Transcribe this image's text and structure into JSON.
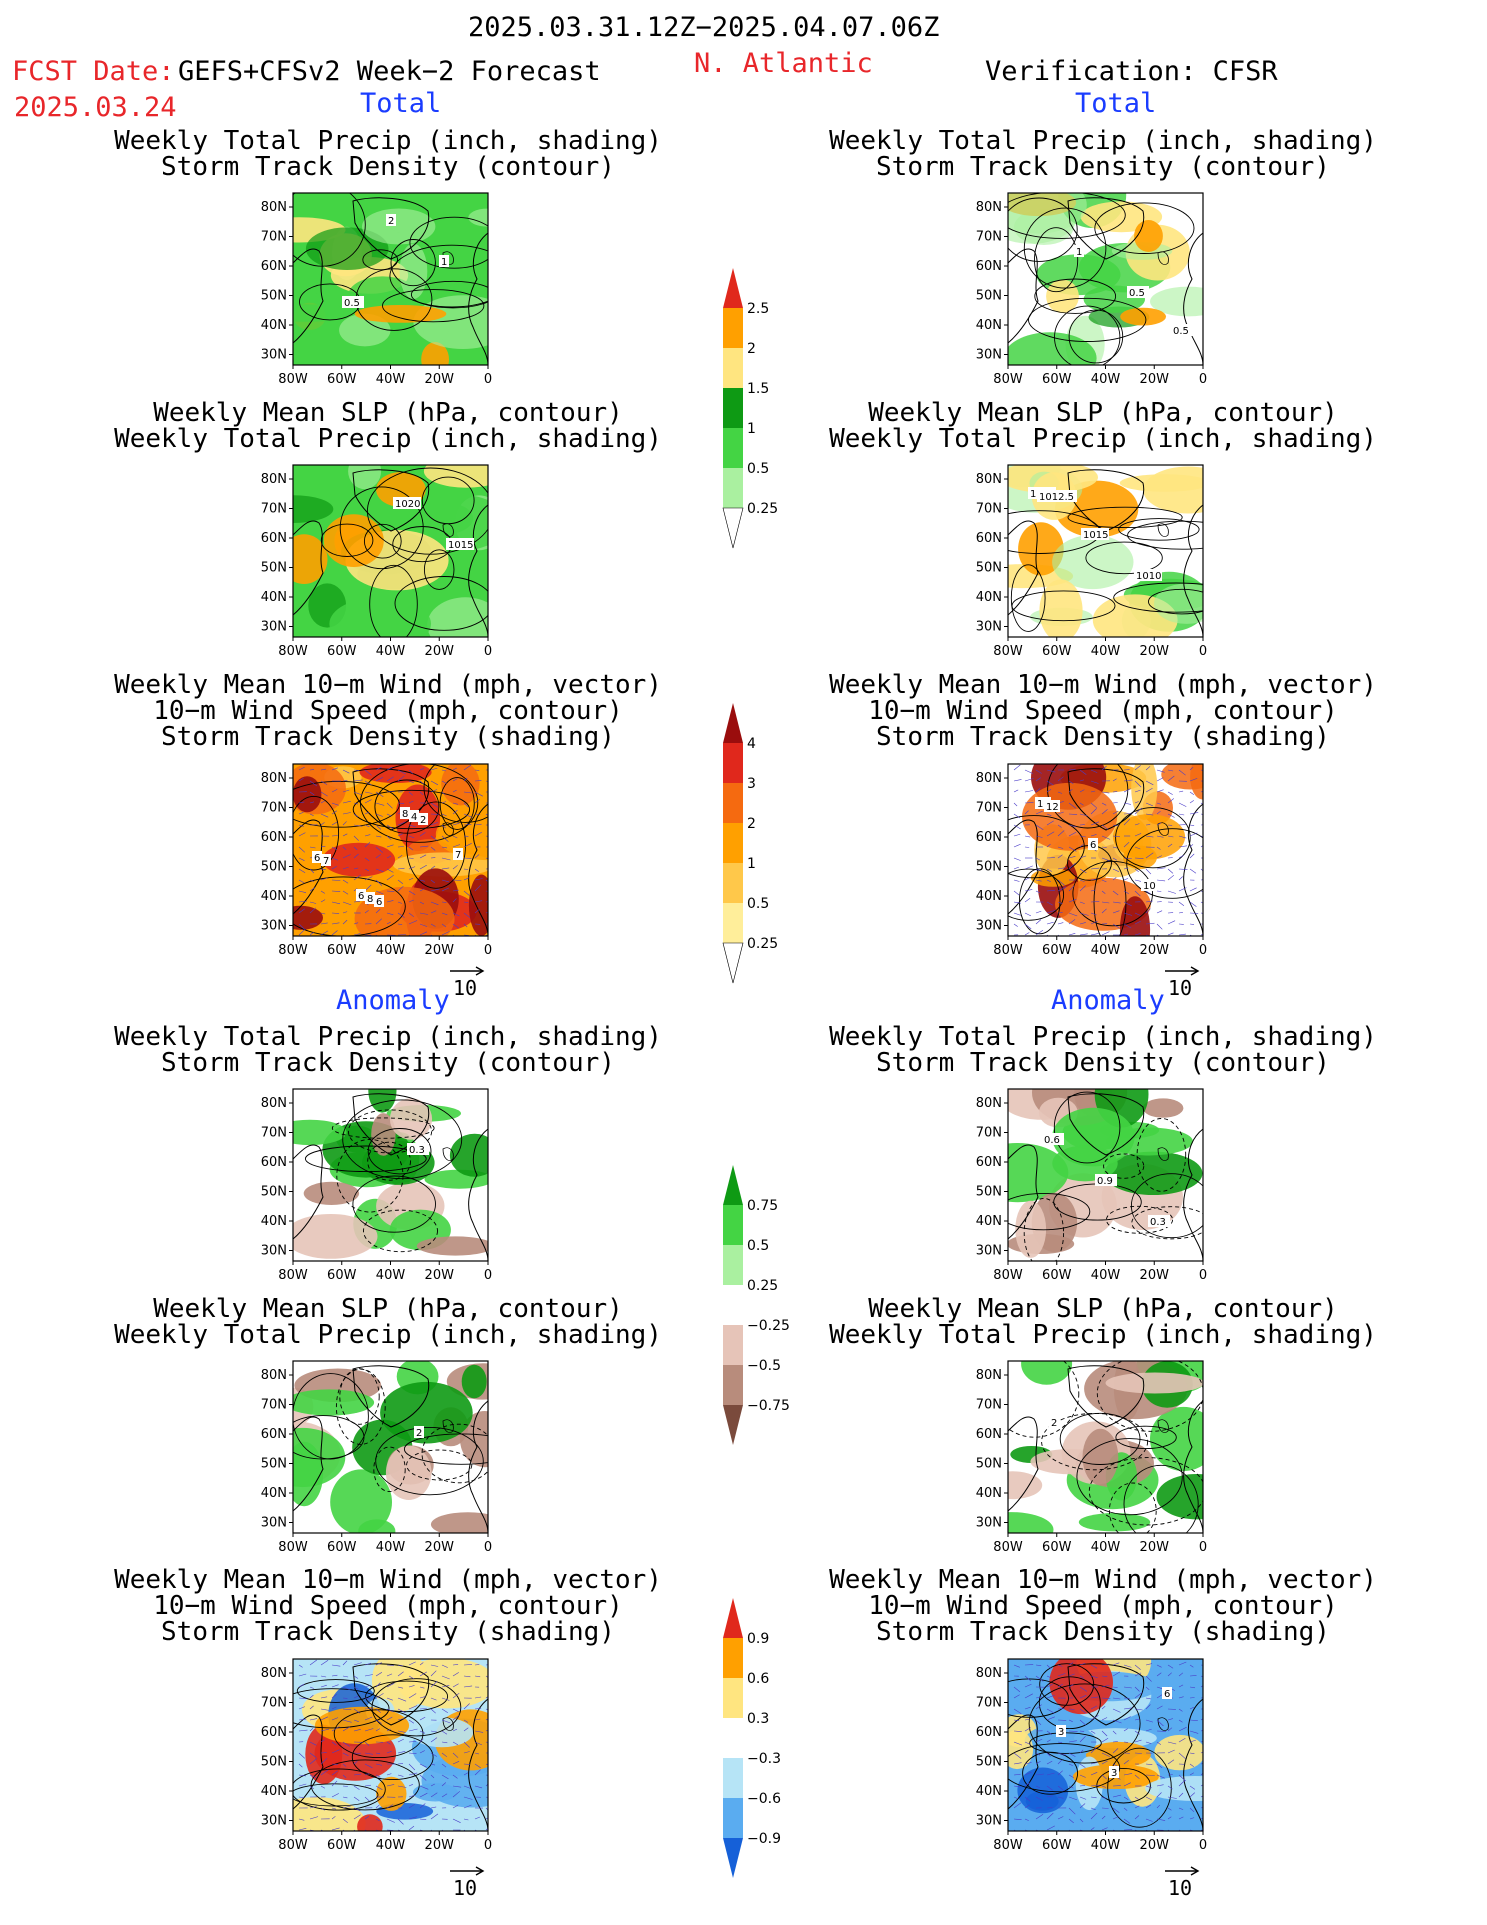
{
  "header": {
    "period": "2025.03.31.12Z−2025.04.07.06Z",
    "fcst_date_label": "FCST Date:",
    "fcst_date": "2025.03.24",
    "forecast_name": "GEFS+CFSv2 Week−2 Forecast",
    "region": "N. Atlantic",
    "verification": "Verification: CFSR"
  },
  "section_labels": {
    "total": "Total",
    "anomaly": "Anomaly"
  },
  "panel_titles": {
    "precip_track": [
      "Weekly Total Precip (inch, shading)",
      "Storm Track Density (contour)"
    ],
    "slp_precip": [
      "Weekly Mean SLP (hPa, contour)",
      "Weekly Total Precip (inch, shading)"
    ],
    "wind_track": [
      "Weekly Mean 10−m Wind (mph, vector)",
      "10−m Wind Speed (mph, contour)",
      "Storm Track Density (shading)"
    ]
  },
  "axes": {
    "lat_ticks": [
      "80N",
      "70N",
      "60N",
      "50N",
      "40N",
      "30N"
    ],
    "lon_ticks": [
      "80W",
      "60W",
      "40W",
      "20W",
      "0"
    ]
  },
  "vector_ref": "10",
  "colorbars": {
    "precip_total": {
      "labels": [
        "2.5",
        "2",
        "1.5",
        "1",
        "0.5",
        "0.25"
      ],
      "colors": [
        "#e0281c",
        "#ffa000",
        "#ffe580",
        "#0e9a14",
        "#44d444",
        "#aaf0a0",
        "#ffffff"
      ]
    },
    "track_total": {
      "labels": [
        "4",
        "3",
        "2",
        "1",
        "0.5",
        "0.25"
      ],
      "colors": [
        "#9a0d0d",
        "#e0281c",
        "#f56a10",
        "#ffa000",
        "#ffc84a",
        "#ffee9a",
        "#ffffff"
      ]
    },
    "precip_anom": {
      "labels": [
        "0.75",
        "0.5",
        "0.25",
        "−0.25",
        "−0.5",
        "−0.75"
      ],
      "colors": [
        "#0e9a14",
        "#44d444",
        "#aaf0a0",
        "#ffffff",
        "#e6c4b8",
        "#b88c7c",
        "#7a4a3c"
      ]
    },
    "track_anom": {
      "labels": [
        "0.9",
        "0.6",
        "0.3",
        "−0.3",
        "−0.6",
        "−0.9"
      ],
      "colors": [
        "#e0281c",
        "#ffa000",
        "#ffe580",
        "#ffffff",
        "#b6e4f6",
        "#5aacf0",
        "#1560d8"
      ]
    }
  },
  "contour_labels": {
    "fc_total_precip": [
      "2",
      "1",
      "0.5"
    ],
    "vf_total_precip": [
      "0.5",
      "1",
      "0.5"
    ],
    "fc_total_slp": [
      "1020",
      "1015"
    ],
    "vf_total_slp": [
      "1020",
      "1015",
      "1010",
      "1012.5"
    ],
    "fc_total_wind": [
      "8",
      "7",
      "6",
      "4",
      "6",
      "8",
      "2",
      "7",
      "6"
    ],
    "vf_total_wind": [
      "10",
      "6",
      "10",
      "12"
    ],
    "fc_anom_precip": [
      "0.3"
    ],
    "vf_anom_precip": [
      "0.6",
      "0.9",
      "0.3"
    ],
    "fc_anom_slp": [
      "2"
    ],
    "vf_anom_slp": [
      "2"
    ],
    "fc_anom_wind": [],
    "vf_anom_wind": [
      "3",
      "3",
      "6"
    ]
  }
}
